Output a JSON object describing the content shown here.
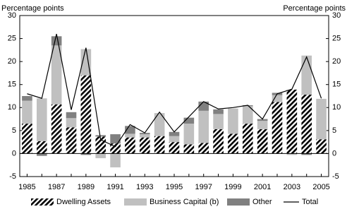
{
  "chart_data": {
    "type": "bar",
    "stacked": true,
    "ylabel": "Percentage points",
    "y2label": "Percentage points",
    "categories": [
      "1985",
      null,
      "1987",
      null,
      "1989",
      null,
      "1991",
      null,
      "1993",
      null,
      "1995",
      null,
      "1997",
      null,
      "1999",
      null,
      "2001",
      null,
      "2003",
      null,
      "2005"
    ],
    "series": [
      {
        "name": "Dwelling Assets",
        "color": "#000000",
        "pattern": "hatch",
        "values": [
          6.5,
          2.7,
          10.7,
          5.7,
          17,
          3.7,
          2.2,
          3.5,
          3.5,
          3.8,
          2.5,
          2,
          2.3,
          5.3,
          4.3,
          6.5,
          5.3,
          11.2,
          13.9,
          12.8,
          3.1
        ]
      },
      {
        "name": "Business Capital (b)",
        "color": "#c0c0c0",
        "values": [
          5,
          9.3,
          12.8,
          2,
          5.7,
          -1,
          -3,
          0.8,
          0.7,
          5,
          1.3,
          4.5,
          7,
          3.3,
          5.5,
          3.8,
          1.8,
          1.5,
          -0.3,
          8.5,
          8.8
        ]
      },
      {
        "name": "Other",
        "color": "#808080",
        "values": [
          1,
          -0.5,
          2,
          1.3,
          -0.3,
          0.3,
          2,
          1.7,
          0.3,
          0,
          0.9,
          1.3,
          2,
          1,
          0,
          0.2,
          0.4,
          0.5,
          0,
          -0.3,
          0
        ]
      },
      {
        "name": "Total",
        "type": "line",
        "color": "#000000",
        "values": [
          13,
          12,
          26,
          9.5,
          23,
          3,
          1.5,
          6.3,
          4.5,
          9,
          4.7,
          8,
          11.3,
          9.7,
          10,
          10.5,
          7.5,
          13,
          14,
          21,
          12
        ]
      }
    ],
    "ylim": [
      -5,
      30
    ],
    "yticks": [
      -5,
      0,
      5,
      10,
      15,
      20,
      25,
      30
    ],
    "y2lim": [
      -5,
      30
    ],
    "y2ticks": [
      -5,
      0,
      5,
      10,
      15,
      20,
      25,
      30
    ],
    "grid": false,
    "legend": "bottom"
  }
}
